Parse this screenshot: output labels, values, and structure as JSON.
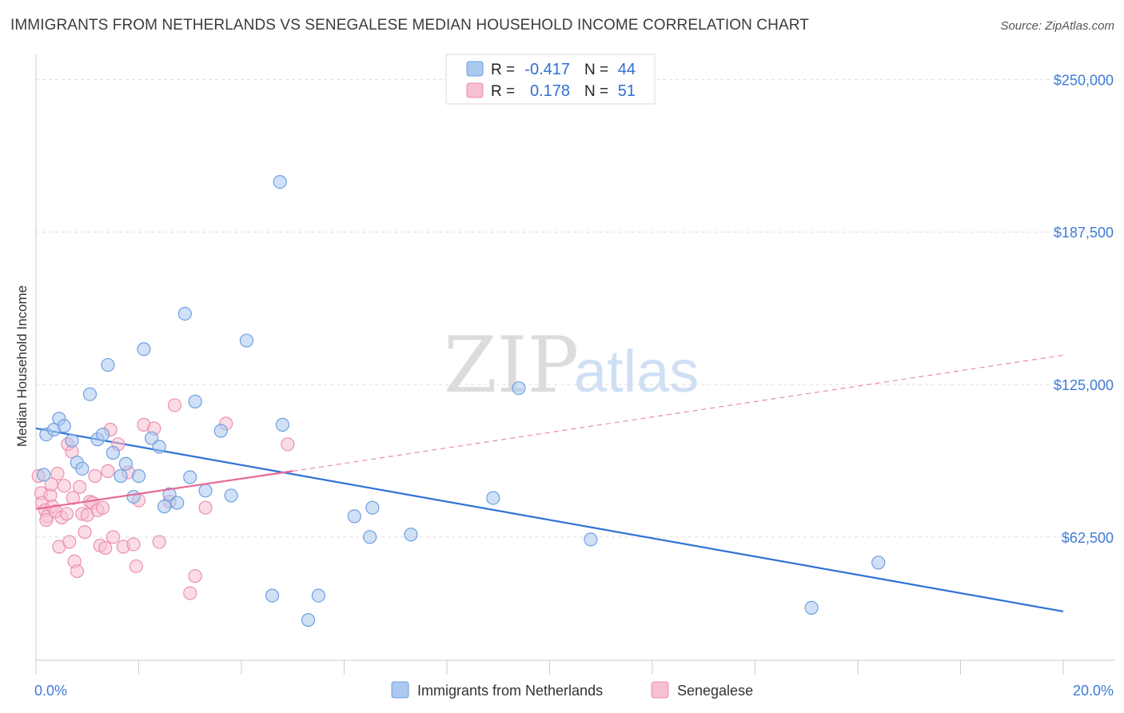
{
  "title": "IMMIGRANTS FROM NETHERLANDS VS SENEGALESE MEDIAN HOUSEHOLD INCOME CORRELATION CHART",
  "source": "Source: ZipAtlas.com",
  "watermark": {
    "zip": "ZIP",
    "atlas": "atlas"
  },
  "colors": {
    "blue_fill": "#aac8f0",
    "blue_stroke": "#6f9fe0",
    "blue_line": "#2f72d6",
    "pink_fill": "#f7bfd0",
    "pink_stroke": "#ec8fae",
    "pink_line": "#e76b97",
    "axis_label": "#3f7bd6",
    "grid": "#dddddd"
  },
  "chart_data": {
    "type": "scatter",
    "xlabel": "",
    "ylabel": "Median Household Income",
    "xlim": [
      0.0,
      20.0
    ],
    "ylim": [
      12000,
      257000
    ],
    "x_tick_labels": [
      "0.0%",
      "20.0%"
    ],
    "y_tick_values": [
      62500,
      125000,
      187500,
      250000
    ],
    "y_tick_labels": [
      "$62,500",
      "$125,000",
      "$187,500",
      "$250,000"
    ],
    "legend": {
      "rows": [
        {
          "r_label": "R =",
          "r_value": "-0.417",
          "n_label": "N =",
          "n_value": "44"
        },
        {
          "r_label": "R =",
          "r_value": "0.178",
          "n_label": "N =",
          "n_value": "51"
        }
      ]
    },
    "series": [
      {
        "name": "Immigrants from Netherlands",
        "color": "#aac8f0",
        "trend": {
          "x0": 0.0,
          "y0": 107000,
          "x1": 20.0,
          "y1": 32000
        },
        "points": [
          [
            0.15,
            88000
          ],
          [
            0.2,
            104500
          ],
          [
            0.35,
            106500
          ],
          [
            0.45,
            111000
          ],
          [
            0.55,
            108000
          ],
          [
            0.7,
            102000
          ],
          [
            0.8,
            93000
          ],
          [
            0.9,
            90500
          ],
          [
            1.05,
            121000
          ],
          [
            1.2,
            102500
          ],
          [
            1.3,
            104500
          ],
          [
            1.4,
            133000
          ],
          [
            1.5,
            97000
          ],
          [
            1.65,
            87500
          ],
          [
            1.75,
            92500
          ],
          [
            1.9,
            79000
          ],
          [
            2.0,
            87500
          ],
          [
            2.1,
            139500
          ],
          [
            2.25,
            103000
          ],
          [
            2.4,
            99500
          ],
          [
            2.5,
            75000
          ],
          [
            2.6,
            80000
          ],
          [
            2.75,
            76500
          ],
          [
            2.9,
            154000
          ],
          [
            3.0,
            87000
          ],
          [
            3.1,
            118000
          ],
          [
            3.3,
            81500
          ],
          [
            3.6,
            106000
          ],
          [
            3.8,
            79500
          ],
          [
            4.1,
            143000
          ],
          [
            4.6,
            38500
          ],
          [
            4.75,
            208000
          ],
          [
            4.8,
            108500
          ],
          [
            5.3,
            28500
          ],
          [
            5.5,
            38500
          ],
          [
            6.2,
            71000
          ],
          [
            6.5,
            62500
          ],
          [
            6.55,
            74500
          ],
          [
            7.3,
            63500
          ],
          [
            8.9,
            78500
          ],
          [
            9.4,
            123500
          ],
          [
            10.8,
            61500
          ],
          [
            15.1,
            33500
          ],
          [
            16.4,
            52000
          ]
        ]
      },
      {
        "name": "Senegalese",
        "color": "#f7bfd0",
        "trend": {
          "x0": 0.0,
          "y0": 74000,
          "x1": 5.0,
          "y1": 89500,
          "dash_x1": 20.0,
          "dash_y1": 137000
        },
        "points": [
          [
            0.05,
            87500
          ],
          [
            0.1,
            80500
          ],
          [
            0.12,
            76500
          ],
          [
            0.18,
            73500
          ],
          [
            0.22,
            71000
          ],
          [
            0.28,
            79500
          ],
          [
            0.3,
            84000
          ],
          [
            0.32,
            75000
          ],
          [
            0.38,
            73000
          ],
          [
            0.42,
            88500
          ],
          [
            0.45,
            58500
          ],
          [
            0.5,
            70500
          ],
          [
            0.55,
            83500
          ],
          [
            0.6,
            72000
          ],
          [
            0.62,
            100500
          ],
          [
            0.65,
            60500
          ],
          [
            0.7,
            97500
          ],
          [
            0.72,
            78500
          ],
          [
            0.75,
            52500
          ],
          [
            0.8,
            48500
          ],
          [
            0.85,
            83000
          ],
          [
            0.9,
            72000
          ],
          [
            0.95,
            64500
          ],
          [
            1.0,
            71500
          ],
          [
            1.05,
            77000
          ],
          [
            1.1,
            76500
          ],
          [
            1.15,
            87500
          ],
          [
            1.2,
            73500
          ],
          [
            1.25,
            59000
          ],
          [
            1.3,
            74500
          ],
          [
            1.35,
            58000
          ],
          [
            1.4,
            89500
          ],
          [
            1.45,
            106500
          ],
          [
            1.5,
            62500
          ],
          [
            1.6,
            100500
          ],
          [
            1.7,
            58500
          ],
          [
            1.8,
            89000
          ],
          [
            1.9,
            59500
          ],
          [
            1.95,
            50500
          ],
          [
            2.0,
            77500
          ],
          [
            2.1,
            108500
          ],
          [
            2.3,
            107000
          ],
          [
            2.4,
            60500
          ],
          [
            2.6,
            77000
          ],
          [
            2.7,
            116500
          ],
          [
            3.0,
            39500
          ],
          [
            3.1,
            46500
          ],
          [
            3.3,
            74500
          ],
          [
            3.7,
            109000
          ],
          [
            4.9,
            100500
          ],
          [
            0.2,
            69500
          ]
        ]
      }
    ]
  },
  "bottom_legend": {
    "items": [
      "Immigrants from Netherlands",
      "Senegalese"
    ]
  }
}
